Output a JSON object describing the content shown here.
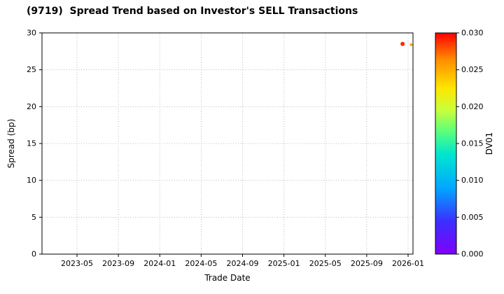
{
  "chart_data": {
    "type": "scatter",
    "title": "(9719)  Spread Trend based on Investor's SELL Transactions",
    "xlabel": "Trade Date",
    "ylabel": "Spread (bp)",
    "ylim": [
      0,
      30
    ],
    "yticks": [
      0,
      5,
      10,
      15,
      20,
      25,
      30
    ],
    "xtick_labels": [
      "2023-05",
      "2023-09",
      "2024-01",
      "2024-05",
      "2024-09",
      "2025-01",
      "2025-05",
      "2025-09",
      "2026-01"
    ],
    "grid": true,
    "points": [
      {
        "date": "2025-12-15",
        "spread": 28.5,
        "dv01": 0.029,
        "r": 3
      },
      {
        "date": "2026-01-10",
        "spread": 28.4,
        "dv01": 0.025,
        "r": 2
      }
    ],
    "colorbar": {
      "label": "DV01",
      "min": 0.0,
      "max": 0.03,
      "ticks": [
        "0.000",
        "0.005",
        "0.010",
        "0.015",
        "0.020",
        "0.025",
        "0.030"
      ],
      "colormap": "rainbow"
    }
  }
}
